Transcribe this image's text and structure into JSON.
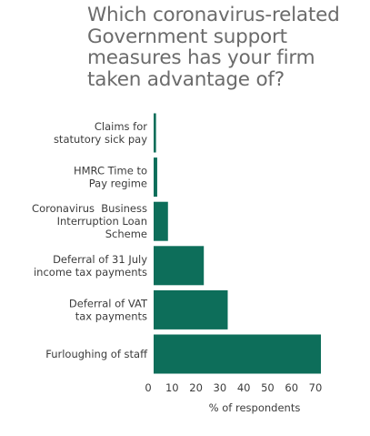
{
  "chart_data": {
    "type": "bar",
    "orientation": "horizontal",
    "title": "Which coronavirus-related\nGovernment support\nmeasures has your firm\ntaken advantage of?",
    "categories": [
      [
        "Claims for",
        "statutory sick pay"
      ],
      [
        "HMRC Time to",
        "Pay regime"
      ],
      [
        "Coronavirus  Business",
        "Interruption Loan",
        "Scheme"
      ],
      [
        "Deferral of 31 July",
        "income tax payments"
      ],
      [
        "Deferral of VAT",
        "tax payments"
      ],
      [
        "Furloughing of staff"
      ]
    ],
    "values": [
      1,
      1.5,
      6,
      21,
      31,
      70
    ],
    "xlabel": "% of respondents",
    "ylabel": "",
    "xlim": [
      0,
      70
    ],
    "xticks": [
      "0",
      "10",
      "20",
      "30",
      "40",
      "50",
      "60",
      "70"
    ],
    "grid": false,
    "bar_color": "#0d6e5a"
  }
}
